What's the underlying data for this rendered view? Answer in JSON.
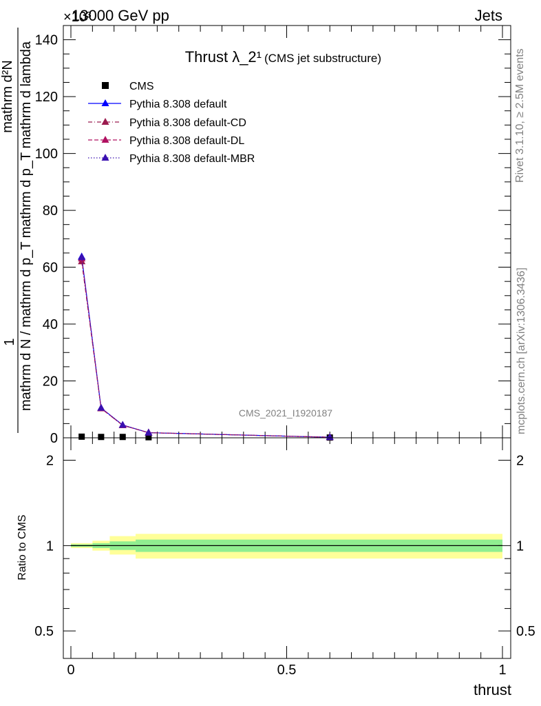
{
  "header": {
    "left_label": "13000 GeV pp",
    "right_label": "Jets",
    "exponent_label": "×10³"
  },
  "side_text": {
    "rivet": "Rivet 3.1.10, ≥ 2.5M events",
    "mcplots": "mcplots.cern.ch [arXiv:1306.3436]"
  },
  "watermark": "CMS_2021_I1920187",
  "chart_data": [
    {
      "type": "line",
      "title": "Thrust λ_2¹",
      "subtitle": "(CMS jet substructure)",
      "ylabel_numerator": "mathrm d²N",
      "ylabel_denominator": "mathrm d N / mathrm d p_T mathrm d p_T mathrm d lambda",
      "ylabel_one": "1",
      "y_scale_factor": 1000,
      "xlim": [
        0,
        1
      ],
      "ylim": [
        0,
        145
      ],
      "yticks": [
        0,
        20,
        40,
        60,
        80,
        100,
        120,
        140
      ],
      "ytick_labels": [
        "0",
        "20",
        "40",
        "60",
        "80",
        "100",
        "120",
        "140"
      ],
      "legend_position": "top-left",
      "series": [
        {
          "name": "CMS",
          "style": "markers",
          "marker": "square",
          "color": "#000000",
          "x": [
            0.025,
            0.07,
            0.12,
            0.18,
            0.6
          ],
          "y": [
            0.4,
            0.3,
            0.3,
            0.2,
            0.1
          ]
        },
        {
          "name": "Pythia 8.308 default",
          "style": "solid",
          "marker": "triangle",
          "color": "#0000ff",
          "x": [
            0.025,
            0.07,
            0.12,
            0.18,
            0.6
          ],
          "y": [
            63.7,
            10.5,
            4.5,
            1.8,
            0.2
          ],
          "step_edges": [
            0.0,
            0.05,
            0.09,
            0.15,
            0.2,
            1.0
          ]
        },
        {
          "name": "Pythia 8.308 default-CD",
          "style": "dash-dot",
          "marker": "triangle",
          "color": "#9b1b4e",
          "x": [
            0.025,
            0.07,
            0.12,
            0.18,
            0.6
          ],
          "y": [
            62.0,
            10.3,
            4.4,
            1.8,
            0.2
          ]
        },
        {
          "name": "Pythia 8.308 default-DL",
          "style": "dashed",
          "marker": "triangle",
          "color": "#b01060",
          "x": [
            0.025,
            0.07,
            0.12,
            0.18,
            0.6
          ],
          "y": [
            63.0,
            10.4,
            4.4,
            1.8,
            0.2
          ]
        },
        {
          "name": "Pythia 8.308 default-MBR",
          "style": "dotted",
          "marker": "triangle",
          "color": "#3a10b0",
          "x": [
            0.025,
            0.07,
            0.12,
            0.18,
            0.6
          ],
          "y": [
            63.5,
            10.5,
            4.5,
            1.8,
            0.2
          ]
        }
      ]
    },
    {
      "type": "area",
      "ylabel": "Ratio to CMS",
      "xlabel": "thrust",
      "xlim": [
        0,
        1
      ],
      "ylim": [
        0.4,
        2.4
      ],
      "yticks": [
        0.5,
        1,
        2
      ],
      "ytick_labels": [
        "0.5",
        "1",
        "2"
      ],
      "xticks": [
        0,
        0.5,
        1
      ],
      "xtick_labels": [
        "0",
        "0.5",
        "1"
      ],
      "reference_line": 1,
      "bins": [
        0.0,
        0.05,
        0.09,
        0.15,
        1.0
      ],
      "band_inner": {
        "color": "#90ee90",
        "lo": [
          0.99,
          0.98,
          0.965,
          0.95
        ],
        "hi": [
          1.01,
          1.02,
          1.035,
          1.05
        ]
      },
      "band_outer": {
        "color": "#ffff99",
        "lo": [
          0.98,
          0.96,
          0.93,
          0.9
        ],
        "hi": [
          1.02,
          1.04,
          1.08,
          1.1
        ]
      }
    }
  ]
}
